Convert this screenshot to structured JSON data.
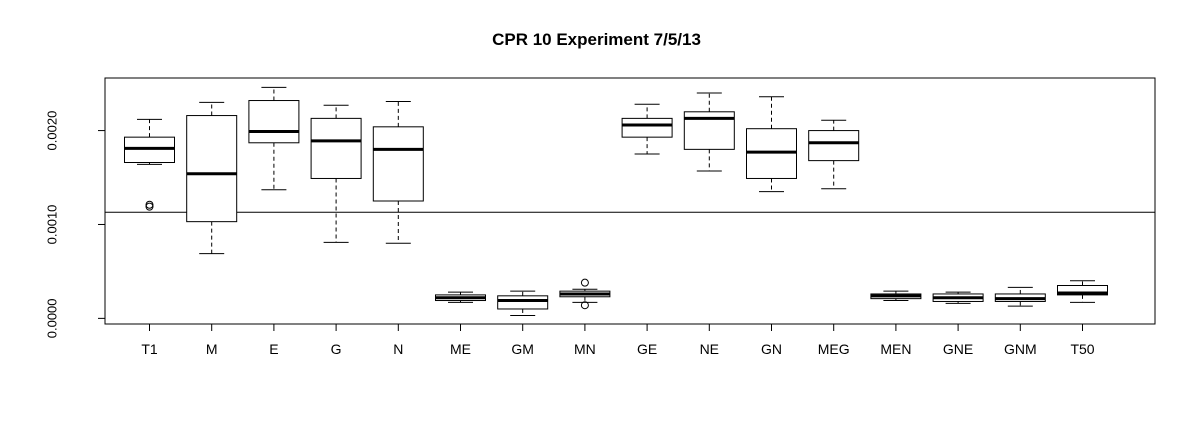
{
  "chart_data": {
    "type": "boxplot",
    "title": "CPR 10 Experiment 7/5/13",
    "xlabel": "",
    "ylabel": "",
    "ylim": [
      -6e-05,
      0.00256
    ],
    "y_ticks": [
      0.0,
      0.001,
      0.002
    ],
    "y_tick_labels": [
      "0.0000",
      "0.0010",
      "0.0020"
    ],
    "reference_line_y": 0.00113,
    "grid": false,
    "categories": [
      "T1",
      "M",
      "E",
      "G",
      "N",
      "ME",
      "GM",
      "MN",
      "GE",
      "NE",
      "GN",
      "MEG",
      "MEN",
      "GNE",
      "GNM",
      "T50"
    ],
    "boxes": [
      {
        "name": "T1",
        "whisker_low": 0.00164,
        "q1": 0.00166,
        "median": 0.00181,
        "q3": 0.00193,
        "whisker_high": 0.00212,
        "outliers": [
          0.00119,
          0.00121
        ]
      },
      {
        "name": "M",
        "whisker_low": 0.00069,
        "q1": 0.00103,
        "median": 0.00154,
        "q3": 0.00216,
        "whisker_high": 0.0023,
        "outliers": []
      },
      {
        "name": "E",
        "whisker_low": 0.00137,
        "q1": 0.00187,
        "median": 0.00199,
        "q3": 0.00232,
        "whisker_high": 0.00246,
        "outliers": []
      },
      {
        "name": "G",
        "whisker_low": 0.00081,
        "q1": 0.00149,
        "median": 0.00189,
        "q3": 0.00213,
        "whisker_high": 0.00227,
        "outliers": []
      },
      {
        "name": "N",
        "whisker_low": 0.0008,
        "q1": 0.00125,
        "median": 0.0018,
        "q3": 0.00204,
        "whisker_high": 0.00231,
        "outliers": []
      },
      {
        "name": "ME",
        "whisker_low": 0.00017,
        "q1": 0.00019,
        "median": 0.00022,
        "q3": 0.00025,
        "whisker_high": 0.00028,
        "outliers": []
      },
      {
        "name": "GM",
        "whisker_low": 3e-05,
        "q1": 0.0001,
        "median": 0.00019,
        "q3": 0.00024,
        "whisker_high": 0.00029,
        "outliers": []
      },
      {
        "name": "MN",
        "whisker_low": 0.00017,
        "q1": 0.00023,
        "median": 0.00026,
        "q3": 0.00029,
        "whisker_high": 0.00031,
        "outliers": [
          0.00014,
          0.00038
        ]
      },
      {
        "name": "GE",
        "whisker_low": 0.00175,
        "q1": 0.00193,
        "median": 0.00206,
        "q3": 0.00213,
        "whisker_high": 0.00228,
        "outliers": []
      },
      {
        "name": "NE",
        "whisker_low": 0.00157,
        "q1": 0.0018,
        "median": 0.00213,
        "q3": 0.0022,
        "whisker_high": 0.0024,
        "outliers": []
      },
      {
        "name": "GN",
        "whisker_low": 0.00135,
        "q1": 0.00149,
        "median": 0.00177,
        "q3": 0.00202,
        "whisker_high": 0.00236,
        "outliers": []
      },
      {
        "name": "MEG",
        "whisker_low": 0.00138,
        "q1": 0.00168,
        "median": 0.00187,
        "q3": 0.002,
        "whisker_high": 0.00211,
        "outliers": []
      },
      {
        "name": "MEN",
        "whisker_low": 0.00019,
        "q1": 0.00021,
        "median": 0.00024,
        "q3": 0.00026,
        "whisker_high": 0.00029,
        "outliers": []
      },
      {
        "name": "GNE",
        "whisker_low": 0.00016,
        "q1": 0.00018,
        "median": 0.00022,
        "q3": 0.00026,
        "whisker_high": 0.00028,
        "outliers": []
      },
      {
        "name": "GNM",
        "whisker_low": 0.00013,
        "q1": 0.00018,
        "median": 0.00021,
        "q3": 0.00026,
        "whisker_high": 0.00033,
        "outliers": []
      },
      {
        "name": "T50",
        "whisker_low": 0.00017,
        "q1": 0.00025,
        "median": 0.00027,
        "q3": 0.00035,
        "whisker_high": 0.0004,
        "outliers": []
      }
    ]
  }
}
